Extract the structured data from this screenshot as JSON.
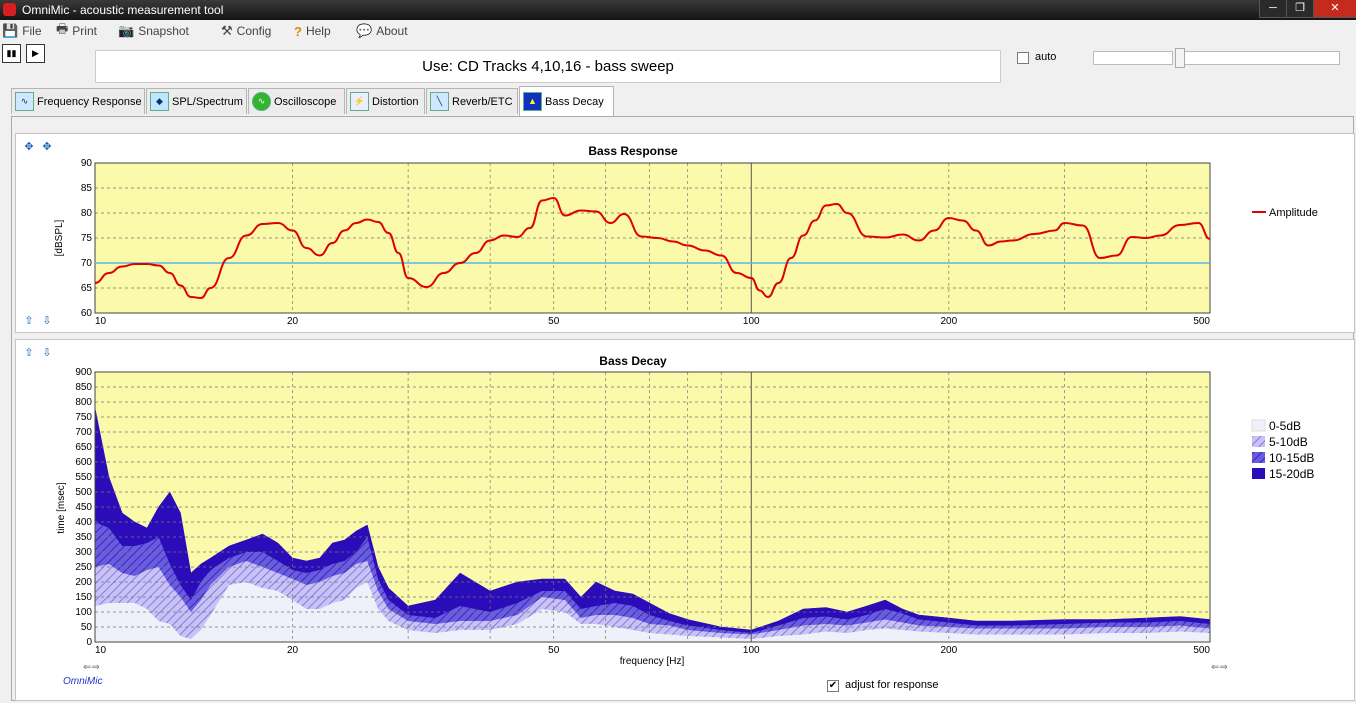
{
  "window": {
    "title": "OmniMic - acoustic measurement tool",
    "min": "─",
    "max": "❐",
    "close": "✕"
  },
  "menu": [
    {
      "label": "File",
      "icon": "floppy-disk-icon",
      "glyph": "💾"
    },
    {
      "label": "Print",
      "icon": "printer-icon",
      "glyph": "🖶"
    },
    {
      "label": "Snapshot",
      "icon": "camera-icon",
      "glyph": "📷"
    },
    {
      "label": "Config",
      "icon": "tools-icon",
      "glyph": "⚒"
    },
    {
      "label": "Help",
      "icon": "question-icon",
      "glyph": "?"
    },
    {
      "label": "About",
      "icon": "speech-bubble-icon",
      "glyph": "💬"
    }
  ],
  "toolbar": {
    "pause_icon": "pause-icon",
    "play_icon": "play-icon"
  },
  "use_text": "Use: CD Tracks 4,10,16 - bass sweep",
  "auto": {
    "label": "auto",
    "checked": false
  },
  "tabs": [
    {
      "label": "Frequency Response",
      "active": false
    },
    {
      "label": "SPL/Spectrum",
      "active": false
    },
    {
      "label": "Oscilloscope",
      "active": false
    },
    {
      "label": "Distortion",
      "active": false
    },
    {
      "label": "Reverb/ETC",
      "active": false
    },
    {
      "label": "Bass Decay",
      "active": true
    }
  ],
  "adjust": {
    "label": "adjust for response",
    "checked": true
  },
  "brand": "OmniMic",
  "colors": {
    "plot_bg": "#fafaaa",
    "amplitude": "#e00000",
    "reference": "#5ab4e6",
    "band_0_5": "#f0f0fa",
    "band_5_10": "#8a7ce6",
    "band_10_15": "#5040d8",
    "band_15_20": "#2a0cb8"
  },
  "chart_data": [
    {
      "type": "line",
      "title": "Bass Response",
      "xlabel": "",
      "ylabel": "[dBSPL]",
      "xscale": "log",
      "xlim": [
        10,
        500
      ],
      "ylim": [
        60,
        90
      ],
      "x_ticks": [
        "10",
        "20",
        "50",
        "100",
        "200",
        "500"
      ],
      "y_ticks": [
        "60",
        "65",
        "70",
        "75",
        "80",
        "85",
        "90"
      ],
      "grid": true,
      "legend": "right",
      "reference_line": 70,
      "series": [
        {
          "name": "Amplitude",
          "x": [
            10,
            10.5,
            11,
            11.5,
            12,
            12.5,
            13,
            13.5,
            14,
            14.5,
            15,
            16,
            17,
            18,
            19,
            20,
            21,
            22,
            23,
            24,
            25,
            26,
            27,
            28,
            29,
            30,
            32,
            34,
            36,
            38,
            40,
            42,
            44,
            46,
            48,
            50,
            52,
            55,
            58,
            61,
            64,
            68,
            72,
            76,
            80,
            85,
            90,
            95,
            100,
            103,
            106,
            110,
            115,
            120,
            125,
            130,
            135,
            140,
            150,
            160,
            170,
            180,
            190,
            200,
            210,
            220,
            230,
            240,
            250,
            270,
            290,
            300,
            320,
            340,
            360,
            380,
            400,
            420,
            450,
            480,
            500
          ],
          "y": [
            66,
            68,
            69.3,
            69.8,
            69.8,
            69.5,
            68,
            65.5,
            63.2,
            63,
            65,
            71,
            75.5,
            77.8,
            78,
            76.5,
            73,
            71.5,
            74,
            76.5,
            78,
            78.7,
            78.2,
            76,
            72,
            67,
            65.2,
            68,
            70,
            72,
            74.5,
            75.5,
            75.2,
            77,
            82.5,
            83,
            79.5,
            80.5,
            80.3,
            78,
            79.8,
            75.3,
            75,
            74.3,
            73.5,
            72.5,
            71.5,
            68,
            67,
            64.5,
            63.2,
            66,
            71,
            75.5,
            78.5,
            81.5,
            81.8,
            80,
            75.3,
            75.1,
            75.7,
            74.5,
            76.5,
            79,
            78.5,
            76.5,
            73.5,
            74.3,
            74.5,
            75.8,
            76.5,
            78,
            77.5,
            71,
            71.5,
            75.2,
            75,
            75.5,
            77.6,
            78,
            74.8
          ]
        }
      ]
    },
    {
      "type": "area",
      "title": "Bass Decay",
      "xlabel": "frequency [Hz]",
      "ylabel": "time [msec]",
      "xscale": "log",
      "xlim": [
        10,
        500
      ],
      "ylim": [
        0,
        900
      ],
      "x_ticks": [
        "10",
        "20",
        "50",
        "100",
        "200",
        "500"
      ],
      "y_ticks": [
        "0",
        "50",
        "100",
        "150",
        "200",
        "250",
        "300",
        "350",
        "400",
        "450",
        "500",
        "550",
        "600",
        "650",
        "700",
        "750",
        "800",
        "850",
        "900"
      ],
      "grid": true,
      "legend": "right",
      "x": [
        10,
        10.5,
        11,
        11.5,
        12,
        12.5,
        13,
        13.5,
        14,
        14.5,
        15,
        16,
        17,
        18,
        19,
        20,
        21,
        22,
        23,
        24,
        25,
        26,
        27,
        28,
        30,
        33,
        36,
        40,
        44,
        48,
        52,
        55,
        58,
        62,
        66,
        70,
        75,
        80,
        90,
        100,
        110,
        120,
        130,
        140,
        150,
        160,
        170,
        180,
        200,
        220,
        250,
        300,
        350,
        400,
        450,
        500
      ],
      "series": [
        {
          "name": "0-5dB",
          "values": [
            120,
            130,
            130,
            130,
            110,
            70,
            60,
            20,
            10,
            40,
            90,
            190,
            200,
            180,
            170,
            140,
            110,
            110,
            130,
            140,
            180,
            200,
            110,
            70,
            40,
            30,
            40,
            40,
            60,
            110,
            100,
            60,
            60,
            50,
            40,
            30,
            25,
            20,
            15,
            10,
            20,
            25,
            35,
            30,
            40,
            45,
            40,
            35,
            30,
            25,
            25,
            25,
            30,
            30,
            35,
            30
          ]
        },
        {
          "name": "5-10dB",
          "values": [
            250,
            260,
            230,
            220,
            240,
            250,
            190,
            150,
            100,
            140,
            190,
            250,
            270,
            250,
            230,
            210,
            190,
            200,
            220,
            230,
            260,
            270,
            170,
            110,
            70,
            60,
            70,
            70,
            90,
            150,
            140,
            80,
            90,
            90,
            80,
            60,
            55,
            40,
            30,
            25,
            40,
            55,
            60,
            55,
            65,
            75,
            65,
            55,
            50,
            45,
            45,
            45,
            50,
            50,
            55,
            45
          ]
        },
        {
          "name": "10-15dB",
          "values": [
            400,
            380,
            320,
            320,
            330,
            350,
            260,
            190,
            140,
            200,
            240,
            280,
            300,
            300,
            270,
            240,
            230,
            240,
            260,
            270,
            300,
            350,
            210,
            140,
            90,
            80,
            120,
            100,
            130,
            170,
            170,
            110,
            120,
            130,
            120,
            90,
            70,
            55,
            40,
            30,
            55,
            80,
            85,
            75,
            90,
            110,
            95,
            75,
            65,
            55,
            55,
            60,
            65,
            65,
            70,
            60
          ]
        },
        {
          "name": "15-20dB",
          "values": [
            780,
            550,
            430,
            400,
            380,
            450,
            500,
            430,
            230,
            260,
            280,
            320,
            340,
            360,
            330,
            280,
            270,
            280,
            330,
            340,
            370,
            390,
            250,
            180,
            120,
            140,
            230,
            170,
            200,
            210,
            210,
            150,
            200,
            170,
            160,
            130,
            95,
            75,
            50,
            40,
            70,
            110,
            115,
            100,
            120,
            140,
            110,
            90,
            80,
            70,
            70,
            75,
            75,
            80,
            85,
            75
          ]
        }
      ]
    }
  ]
}
